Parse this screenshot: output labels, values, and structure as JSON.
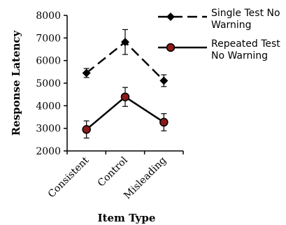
{
  "chart_data": {
    "type": "line",
    "title": "",
    "xlabel": "Item Type",
    "ylabel": "Response Latency",
    "categories": [
      "Consistent",
      "Control",
      "Misleading"
    ],
    "ylim": [
      2000,
      8000
    ],
    "yticks": [
      "2000",
      "3000",
      "4000",
      "5000",
      "6000",
      "7000",
      "8000"
    ],
    "grid": false,
    "legend_position": "top-right",
    "series": [
      {
        "name": "Single Test No Warning",
        "legend_lines": [
          "Single Test No",
          "Warning"
        ],
        "values": [
          5450,
          6820,
          5110
        ],
        "errors": [
          200,
          550,
          260
        ],
        "marker": "diamond",
        "line_style": "dashed",
        "color": "#000000"
      },
      {
        "name": "Repeated Test No Warning",
        "legend_lines": [
          "Repeated Test",
          "No Warning"
        ],
        "values": [
          2950,
          4390,
          3270
        ],
        "errors": [
          380,
          420,
          380
        ],
        "marker": "circle",
        "line_style": "solid",
        "color": "#000000",
        "marker_fill": "#8b1a1a"
      }
    ]
  }
}
